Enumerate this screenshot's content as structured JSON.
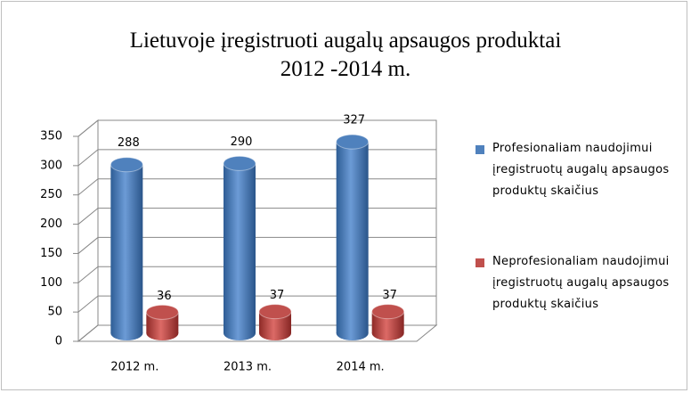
{
  "chart_data": {
    "type": "bar3d",
    "title": [
      "Lietuvoje įregistruoti  augalų apsaugos produktai",
      "2012 -2014 m."
    ],
    "categories": [
      "2012 m.",
      "2013 m.",
      "2014 m."
    ],
    "series": [
      {
        "name": "Profesionaliam naudojimui įregistruotų augalų apsaugos produktų skaičius",
        "color": "#4f81bd",
        "values": [
          288,
          290,
          327
        ]
      },
      {
        "name": "Neprofesionaliam naudojimui įregistruotų augalų apsaugos produktų skaičius",
        "color": "#c0504d",
        "values": [
          36,
          37,
          37
        ]
      }
    ],
    "ylim": [
      0,
      350
    ],
    "yticks": [
      0,
      50,
      100,
      150,
      200,
      250,
      300,
      350
    ],
    "grid": true,
    "legend": "right"
  }
}
